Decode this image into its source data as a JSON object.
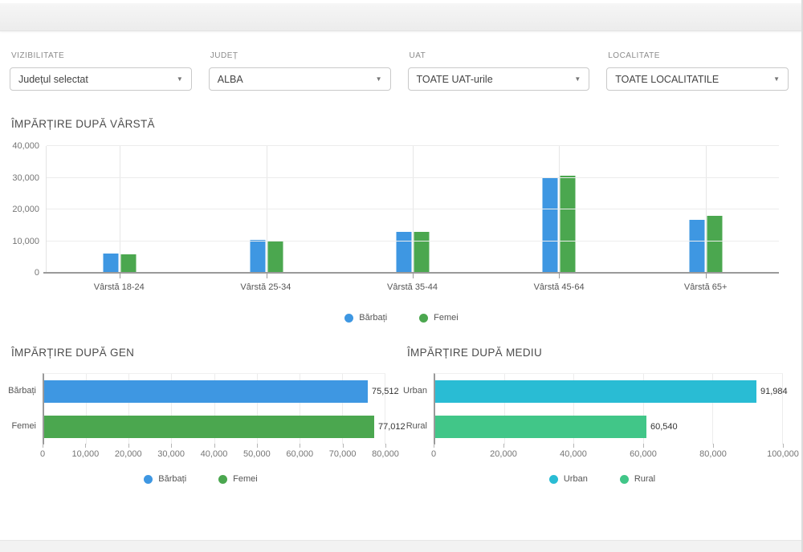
{
  "filters": {
    "items": [
      {
        "label": "VIZIBILITATE",
        "value": "Județul selectat"
      },
      {
        "label": "JUDEȚ",
        "value": "ALBA"
      },
      {
        "label": "UAT",
        "value": "TOATE UAT-urile"
      },
      {
        "label": "LOCALITATE",
        "value": "TOATE LOCALITATILE"
      }
    ]
  },
  "colors": {
    "male_blue": "#3e97e2",
    "female_green": "#4ba74f",
    "urban_teal": "#29bcd4",
    "rural_emerald": "#41c688",
    "axis_dark": "#9a9a9a",
    "grid_light": "#ececec"
  },
  "chart_data": [
    {
      "type": "bar",
      "title": "ÎMPĂRȚIRE DUPĂ VÂRSTĂ",
      "categories": [
        "Vârstă 18-24",
        "Vârstă 25-34",
        "Vârstă 35-44",
        "Vârstă 45-64",
        "Vârstă 65+"
      ],
      "series": [
        {
          "name": "Bărbați",
          "color": "#3e97e2",
          "values": [
            6000,
            10300,
            13000,
            29800,
            16800
          ]
        },
        {
          "name": "Femei",
          "color": "#4ba74f",
          "values": [
            5800,
            10000,
            12800,
            30700,
            18000
          ]
        }
      ],
      "xlabel": "",
      "ylabel": "",
      "ylim": [
        0,
        40000
      ],
      "yticks": [
        {
          "value": 40000,
          "label": "40,000"
        },
        {
          "value": 30000,
          "label": "30,000"
        },
        {
          "value": 20000,
          "label": "20,000"
        },
        {
          "value": 10000,
          "label": "10,000"
        },
        {
          "value": 0,
          "label": "0"
        }
      ],
      "grid": true,
      "legend_position": "bottom"
    },
    {
      "type": "bar",
      "orientation": "horizontal",
      "title": "ÎMPĂRȚIRE DUPĂ GEN",
      "categories": [
        "Bărbați",
        "Femei"
      ],
      "values": [
        75512,
        77012
      ],
      "value_labels": [
        "75,512",
        "77,012"
      ],
      "bar_colors": [
        "#3e97e2",
        "#4ba74f"
      ],
      "xlim": [
        0,
        80000
      ],
      "xticks": [
        {
          "value": 0,
          "label": "0"
        },
        {
          "value": 10000,
          "label": "10,000"
        },
        {
          "value": 20000,
          "label": "20,000"
        },
        {
          "value": 30000,
          "label": "30,000"
        },
        {
          "value": 40000,
          "label": "40,000"
        },
        {
          "value": 50000,
          "label": "50,000"
        },
        {
          "value": 60000,
          "label": "60,000"
        },
        {
          "value": 70000,
          "label": "70,000"
        },
        {
          "value": 80000,
          "label": "80,000"
        }
      ],
      "grid": true,
      "legend_position": "bottom",
      "legend": [
        {
          "label": "Bărbați",
          "color": "#3e97e2"
        },
        {
          "label": "Femei",
          "color": "#4ba74f"
        }
      ]
    },
    {
      "type": "bar",
      "orientation": "horizontal",
      "title": "ÎMPĂRȚIRE DUPĂ MEDIU",
      "categories": [
        "Urban",
        "Rural"
      ],
      "values": [
        91984,
        60540
      ],
      "value_labels": [
        "91,984",
        "60,540"
      ],
      "bar_colors": [
        "#29bcd4",
        "#41c688"
      ],
      "xlim": [
        0,
        100000
      ],
      "xticks": [
        {
          "value": 0,
          "label": "0"
        },
        {
          "value": 20000,
          "label": "20,000"
        },
        {
          "value": 40000,
          "label": "40,000"
        },
        {
          "value": 60000,
          "label": "60,000"
        },
        {
          "value": 80000,
          "label": "80,000"
        },
        {
          "value": 100000,
          "label": "100,000"
        }
      ],
      "grid": true,
      "legend_position": "bottom",
      "legend": [
        {
          "label": "Urban",
          "color": "#29bcd4"
        },
        {
          "label": "Rural",
          "color": "#41c688"
        }
      ]
    }
  ]
}
